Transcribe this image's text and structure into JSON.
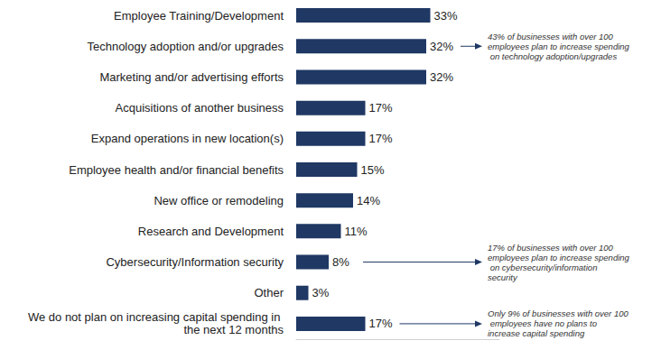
{
  "chart_data": {
    "type": "bar",
    "orientation": "horizontal",
    "categories": [
      "Employee Training/Development",
      "Technology adoption and/or upgrades",
      "Marketing and/or advertising efforts",
      "Acquisitions of another business",
      "Expand operations in new location(s)",
      "Employee health and/or financial benefits",
      "New office or remodeling",
      "Research and Development",
      "Cybersecurity/Information security",
      "Other",
      "We do not plan on increasing capital spending in the next 12 months"
    ],
    "values": [
      33,
      32,
      32,
      17,
      17,
      15,
      14,
      11,
      8,
      3,
      17
    ],
    "value_labels": [
      "33%",
      "32%",
      "32%",
      "17%",
      "17%",
      "15%",
      "14%",
      "11%",
      "8%",
      "3%",
      "17%"
    ],
    "color": "#1f3864",
    "xlim": [
      0,
      50
    ],
    "data_labels": true,
    "tick_labels": "y",
    "grid": false,
    "annotations": [
      {
        "category": "Technology adoption and/or upgrades",
        "text": "43% of businesses with over 100 employees plan to increase spending on technology adoption/upgrades"
      },
      {
        "category": "Cybersecurity/Information security",
        "text": "17% of businesses with over 100 employees plan to increase spending on cybersecurity/information security"
      },
      {
        "category": "We do not plan on increasing capital spending in the next 12 months",
        "text": "Only 9% of businesses with over 100 employees have no plans to increase capital spending"
      }
    ]
  }
}
